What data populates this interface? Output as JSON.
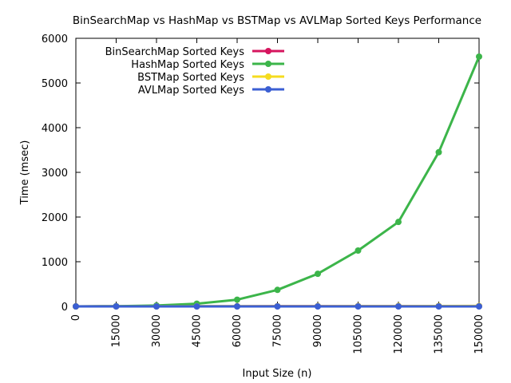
{
  "chart_data": {
    "type": "line",
    "title": "BinSearchMap vs HashMap vs BSTMap vs AVLMap Sorted Keys Performance",
    "xlabel": "Input Size (n)",
    "ylabel": "Time (msec)",
    "x": [
      0,
      15000,
      30000,
      45000,
      60000,
      75000,
      90000,
      105000,
      120000,
      135000,
      150000
    ],
    "xticks": [
      "0",
      "15000",
      "30000",
      "45000",
      "60000",
      "75000",
      "90000",
      "105000",
      "120000",
      "135000",
      "150000"
    ],
    "yticks": [
      "0",
      "1000",
      "2000",
      "3000",
      "4000",
      "5000",
      "6000"
    ],
    "xlim": [
      0,
      150000
    ],
    "ylim": [
      0,
      6000
    ],
    "grid": false,
    "legend_position": "top-left",
    "series": [
      {
        "name": "BinSearchMap Sorted Keys",
        "color": "#d6155e",
        "values": [
          0,
          1,
          1,
          2,
          2,
          3,
          3,
          4,
          4,
          5,
          5
        ]
      },
      {
        "name": "HashMap Sorted Keys",
        "color": "#3cb54a",
        "values": [
          0,
          5,
          20,
          60,
          150,
          370,
          730,
          1250,
          1890,
          3450,
          5590
        ]
      },
      {
        "name": "BSTMap Sorted Keys",
        "color": "#f5dc1f",
        "values": [
          0,
          1,
          2,
          3,
          4,
          5,
          6,
          7,
          8,
          9,
          10
        ]
      },
      {
        "name": "AVLMap Sorted Keys",
        "color": "#3b5fd3",
        "values": [
          0,
          0,
          0,
          0,
          0,
          0,
          0,
          0,
          0,
          0,
          0
        ]
      }
    ]
  }
}
